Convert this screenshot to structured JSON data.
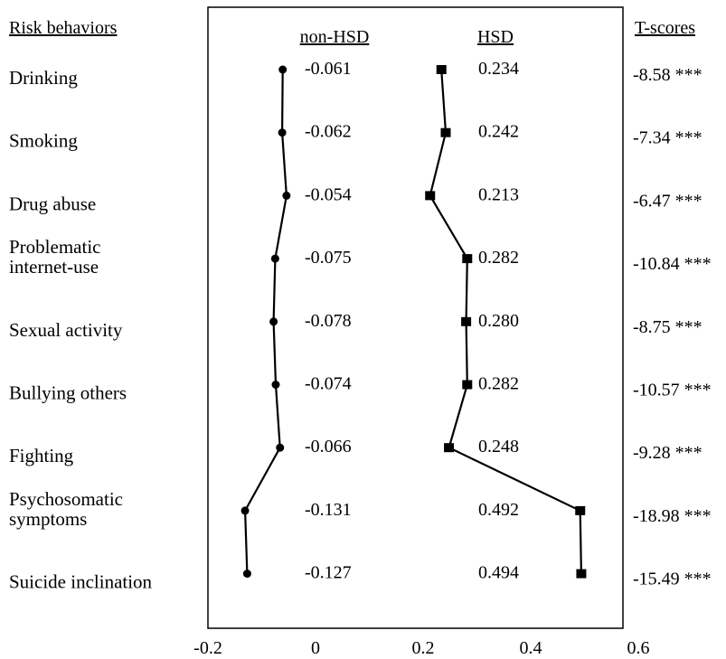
{
  "chart_data": {
    "type": "line",
    "orientation": "horizontal",
    "category_header": "Risk behaviors",
    "tscore_header": "T-scores",
    "categories": [
      [
        "Drinking"
      ],
      [
        "Smoking"
      ],
      [
        "Drug abuse"
      ],
      [
        "Problematic",
        "internet-use"
      ],
      [
        "Sexual activity"
      ],
      [
        "Bullying others"
      ],
      [
        "Fighting"
      ],
      [
        "Psychosomatic",
        "symptoms"
      ],
      [
        "Suicide inclination"
      ]
    ],
    "series": [
      {
        "name": "non-HSD",
        "marker": "circle",
        "values": [
          -0.061,
          -0.062,
          -0.054,
          -0.075,
          -0.078,
          -0.074,
          -0.066,
          -0.131,
          -0.127
        ],
        "labels": [
          "-0.061",
          "-0.062",
          "-0.054",
          "-0.075",
          "-0.078",
          "-0.074",
          "-0.066",
          "-0.131",
          "-0.127"
        ]
      },
      {
        "name": "HSD",
        "marker": "square",
        "values": [
          0.234,
          0.242,
          0.213,
          0.282,
          0.28,
          0.282,
          0.248,
          0.492,
          0.494
        ],
        "labels": [
          "0.234",
          "0.242",
          "0.213",
          "0.282",
          "0.280",
          "0.282",
          "0.248",
          "0.492",
          "0.494"
        ]
      }
    ],
    "t_scores": [
      "-8.58 ***",
      "-7.34 ***",
      "-6.47 ***",
      "-10.84 ***",
      "-8.75 ***",
      "-10.57 ***",
      "-9.28 ***",
      "-18.98 ***",
      "-15.49 ***"
    ],
    "xlim": [
      -0.2,
      0.6
    ],
    "xticks": [
      -0.2,
      0,
      0.2,
      0.4,
      0.6
    ],
    "xtick_labels": [
      "-0.2",
      "0",
      "0.2",
      "0.4",
      "0.6"
    ],
    "grid": false,
    "legend": "series names printed above columns"
  }
}
